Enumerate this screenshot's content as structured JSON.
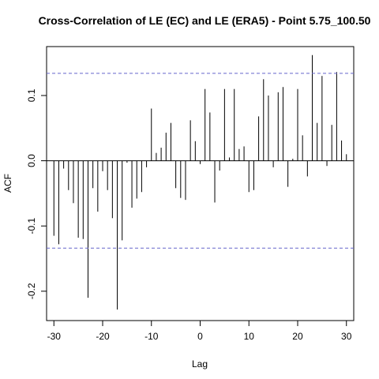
{
  "chart_data": {
    "type": "bar",
    "title": "Cross-Correlation of LE (EC) and LE (ERA5) - Point 5.75_100.50",
    "xlabel": "Lag",
    "ylabel": "ACF",
    "xlim": [
      -31.5,
      31.5
    ],
    "ylim": [
      -0.245,
      0.175
    ],
    "x_ticks": [
      -30,
      -20,
      -10,
      0,
      10,
      20,
      30
    ],
    "x_tick_labels": [
      "-30",
      "-20",
      "-10",
      "0",
      "10",
      "20",
      "30"
    ],
    "y_ticks": [
      -0.2,
      -0.1,
      0.0,
      0.1
    ],
    "y_tick_labels": [
      "-0.2",
      "-0.1",
      "0.0",
      "0.1"
    ],
    "confidence_bound": 0.134,
    "confidence_color": "#6666cc",
    "bar_color": "#000000",
    "lags": [
      -30,
      -29,
      -28,
      -27,
      -26,
      -25,
      -24,
      -23,
      -22,
      -21,
      -20,
      -19,
      -18,
      -17,
      -16,
      -15,
      -14,
      -13,
      -12,
      -11,
      -10,
      -9,
      -8,
      -7,
      -6,
      -5,
      -4,
      -3,
      -2,
      -1,
      0,
      1,
      2,
      3,
      4,
      5,
      6,
      7,
      8,
      9,
      10,
      11,
      12,
      13,
      14,
      15,
      16,
      17,
      18,
      19,
      20,
      21,
      22,
      23,
      24,
      25,
      26,
      27,
      28,
      29,
      30
    ],
    "values": [
      -0.115,
      -0.128,
      -0.012,
      -0.045,
      -0.065,
      -0.118,
      -0.12,
      -0.21,
      -0.042,
      -0.078,
      -0.016,
      -0.045,
      -0.088,
      -0.228,
      -0.122,
      -0.003,
      -0.072,
      -0.058,
      -0.048,
      -0.01,
      0.08,
      0.012,
      0.02,
      0.043,
      0.058,
      -0.042,
      -0.057,
      -0.06,
      0.062,
      0.03,
      -0.005,
      0.11,
      0.074,
      -0.064,
      -0.015,
      0.11,
      0.005,
      0.11,
      0.018,
      0.022,
      -0.048,
      -0.045,
      0.068,
      0.125,
      0.1,
      -0.01,
      0.105,
      0.113,
      -0.04,
      0.003,
      0.11,
      0.039,
      -0.024,
      0.162,
      0.058,
      0.13,
      -0.008,
      0.055,
      0.136,
      0.031,
      0.01
    ]
  }
}
